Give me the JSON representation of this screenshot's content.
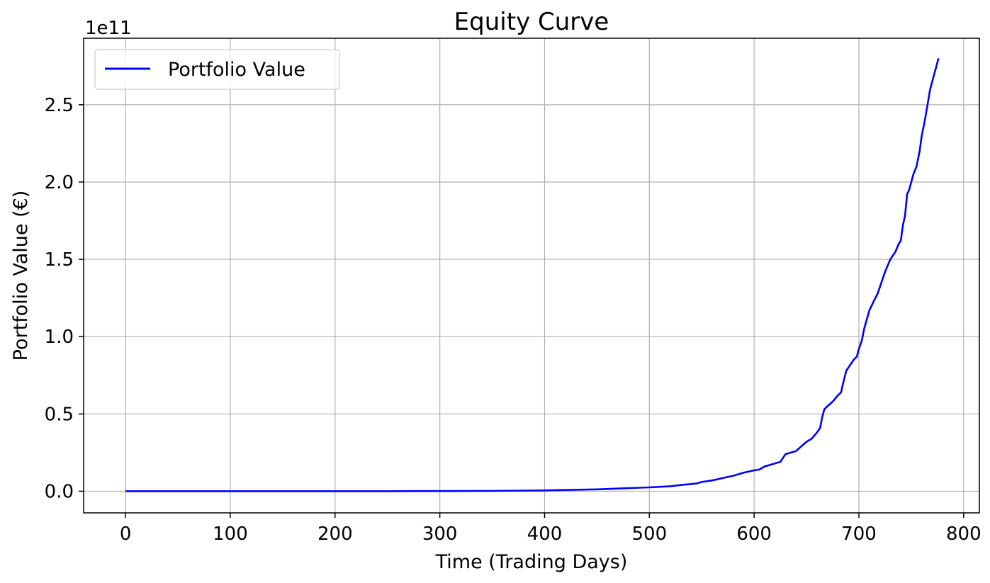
{
  "chart_data": {
    "type": "line",
    "title": "Equity Curve",
    "xlabel": "Time (Trading Days)",
    "ylabel": "Portfolio Value (€)",
    "offset_label": "1e11",
    "xlim": [
      -40,
      815
    ],
    "ylim": [
      -0.14,
      2.93
    ],
    "x_ticks": [
      0,
      100,
      200,
      300,
      400,
      500,
      600,
      700,
      800
    ],
    "x_tick_labels": [
      "0",
      "100",
      "200",
      "300",
      "400",
      "500",
      "600",
      "700",
      "800"
    ],
    "y_ticks": [
      0.0,
      0.5,
      1.0,
      1.5,
      2.0,
      2.5
    ],
    "y_tick_labels": [
      "0.0",
      "0.5",
      "1.0",
      "1.5",
      "2.0",
      "2.5"
    ],
    "grid": true,
    "legend": {
      "position": "top-left"
    },
    "series": [
      {
        "name": "Portfolio Value",
        "color": "#0000ff",
        "x": [
          0,
          50,
          100,
          150,
          200,
          250,
          300,
          350,
          400,
          420,
          450,
          480,
          500,
          520,
          530,
          545,
          550,
          560,
          570,
          580,
          590,
          600,
          605,
          610,
          615,
          620,
          625,
          630,
          640,
          645,
          650,
          655,
          660,
          663,
          665,
          667,
          670,
          675,
          680,
          683,
          685,
          688,
          690,
          695,
          698,
          700,
          703,
          705,
          710,
          715,
          718,
          720,
          725,
          730,
          733,
          735,
          738,
          740,
          742,
          744,
          746,
          748,
          752,
          755,
          758,
          760,
          763,
          765,
          768,
          770,
          772,
          774,
          776
        ],
        "y": [
          0.0,
          0.0,
          0.0,
          0.0,
          0.0,
          0.0,
          0.001,
          0.002,
          0.005,
          0.008,
          0.012,
          0.02,
          0.025,
          0.032,
          0.04,
          0.05,
          0.06,
          0.07,
          0.085,
          0.1,
          0.12,
          0.135,
          0.14,
          0.16,
          0.17,
          0.18,
          0.19,
          0.24,
          0.26,
          0.29,
          0.32,
          0.34,
          0.38,
          0.41,
          0.48,
          0.53,
          0.55,
          0.58,
          0.62,
          0.64,
          0.7,
          0.78,
          0.8,
          0.85,
          0.87,
          0.92,
          0.98,
          1.05,
          1.17,
          1.24,
          1.28,
          1.32,
          1.42,
          1.5,
          1.53,
          1.55,
          1.6,
          1.62,
          1.72,
          1.78,
          1.92,
          1.95,
          2.05,
          2.1,
          2.2,
          2.3,
          2.4,
          2.48,
          2.6,
          2.65,
          2.7,
          2.75,
          2.8
        ]
      }
    ]
  }
}
